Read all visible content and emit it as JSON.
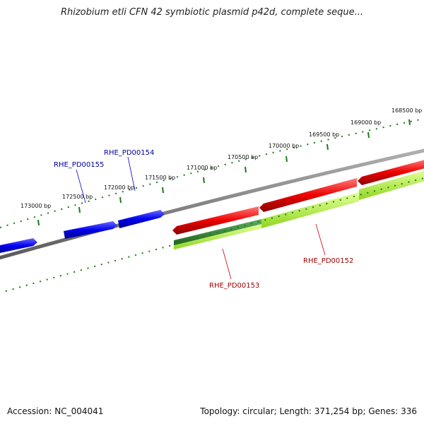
{
  "title": "Rhizobium etli CFN 42 symbiotic plasmid p42d, complete seque...",
  "footer": {
    "accession": "Accession: NC_004041",
    "summary": "Topology: circular; Length: 371,254 bp; Genes: 336"
  },
  "ticks": [
    "173000 bp",
    "172500 bp",
    "172000 bp",
    "171500 bp",
    "171000 bp",
    "170500 bp",
    "170000 bp",
    "169500 bp",
    "169000 bp",
    "168500 bp"
  ],
  "genes": [
    {
      "name": "RHE_PD00155",
      "strand": "forward",
      "color": "#0000ee"
    },
    {
      "name": "RHE_PD00154",
      "strand": "forward",
      "color": "#0000ee"
    },
    {
      "name": "RHE_PD00153",
      "strand": "reverse",
      "color": "#ee0000"
    },
    {
      "name": "RHE_PD00152",
      "strand": "reverse",
      "color": "#ee0000"
    }
  ],
  "colors": {
    "forward": "#0000ee",
    "reverse": "#ee0000",
    "backbone": "#888888",
    "ticks": "#1a7a1a",
    "feature_dark": "#2d7d2d",
    "feature_light": "#adff2f"
  }
}
